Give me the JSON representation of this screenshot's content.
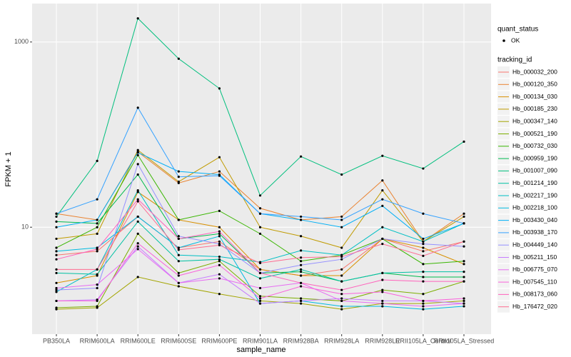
{
  "chart_data": {
    "type": "line",
    "x_label": "sample_name",
    "y_label": "FPKM + 1",
    "categories": [
      "PB350LA",
      "RRIM600LA",
      "RRIM600LE",
      "RRIM600SE",
      "RRIM600PE",
      "RRIM901LA",
      "RRIM928BA",
      "RRIM928LA",
      "RRIM928LE",
      "RRII105LA_Control",
      "RRII105LA_Stressed"
    ],
    "y_log_scale": true,
    "ylim": [
      0.7,
      2600
    ],
    "yticks": [
      10,
      1000
    ],
    "grid": true,
    "legend_position": "right",
    "shape_legend_title": "quant_status",
    "shape_levels": [
      "OK"
    ],
    "point_color": "#000000",
    "color_legend_title": "tracking_id",
    "series": [
      {
        "name": "Hb_000032_200",
        "color": "#F8766D",
        "values": [
          5,
          5.5,
          13,
          6,
          7,
          3.5,
          3,
          3.5,
          7.5,
          5.5,
          7
        ]
      },
      {
        "name": "Hb_000120_350",
        "color": "#EA8331",
        "values": [
          14,
          12,
          65,
          30,
          40,
          16,
          12,
          13,
          32,
          7,
          14
        ]
      },
      {
        "name": "Hb_000134_030",
        "color": "#D89000",
        "values": [
          2.5,
          3,
          24,
          12,
          10,
          3.5,
          3,
          3,
          7.5,
          6,
          4
        ]
      },
      {
        "name": "Hb_000185_230",
        "color": "#C09B00",
        "values": [
          7.5,
          8.5,
          68,
          31,
          57,
          10,
          8,
          6,
          25,
          7,
          13
        ]
      },
      {
        "name": "Hb_000347_140",
        "color": "#A3A500",
        "values": [
          1.3,
          1.35,
          2.9,
          2.3,
          1.9,
          1.6,
          1.5,
          1.3,
          1.5,
          1.5,
          1.6
        ]
      },
      {
        "name": "Hb_000521_190",
        "color": "#7CAE00",
        "values": [
          1.35,
          1.4,
          8.5,
          3.2,
          4.3,
          1.8,
          1.7,
          1.6,
          2.1,
          1.9,
          2.6
        ]
      },
      {
        "name": "Hb_000732_030",
        "color": "#39B600",
        "values": [
          6,
          10,
          60,
          12,
          15,
          8.5,
          4.3,
          5,
          7.5,
          4,
          4.3
        ]
      },
      {
        "name": "Hb_000959_190",
        "color": "#00BB4E",
        "values": [
          11.5,
          11,
          37,
          7.5,
          8.5,
          3.2,
          3.3,
          2.6,
          3.2,
          2.9,
          2.9
        ]
      },
      {
        "name": "Hb_001007_090",
        "color": "#00BF7D",
        "values": [
          13,
          52,
          1800,
          660,
          315,
          22,
          58,
          37,
          59,
          43,
          84
        ]
      },
      {
        "name": "Hb_001214_190",
        "color": "#00C1A3",
        "values": [
          3.2,
          3.1,
          11.5,
          4.3,
          4.5,
          2.8,
          3.5,
          2.6,
          3.2,
          3.3,
          3.3
        ]
      },
      {
        "name": "Hb_002217_190",
        "color": "#00BFC4",
        "values": [
          2,
          3.5,
          25,
          5,
          4.8,
          4.2,
          5.6,
          5,
          10,
          7,
          11
        ]
      },
      {
        "name": "Hb_002218_100",
        "color": "#00BAE0",
        "values": [
          5.5,
          6,
          13,
          6,
          8,
          1.5,
          1.6,
          1.4,
          1.4,
          1.3,
          1.4
        ]
      },
      {
        "name": "Hb_003430_040",
        "color": "#00B0F6",
        "values": [
          10,
          12,
          64,
          40,
          37,
          14,
          12,
          10,
          17,
          7.5,
          11
        ]
      },
      {
        "name": "Hb_003938_170",
        "color": "#35A2FF",
        "values": [
          14,
          20,
          195,
          35,
          36,
          14,
          13,
          12,
          20,
          14,
          11
        ]
      },
      {
        "name": "Hb_004449_140",
        "color": "#9590FF",
        "values": [
          2.1,
          2.2,
          48,
          8,
          6.6,
          3.2,
          3.9,
          4.5,
          7.5,
          6.6,
          6.2
        ]
      },
      {
        "name": "Hb_005211_150",
        "color": "#C77CFF",
        "values": [
          1.6,
          1.65,
          6.2,
          2.5,
          3.1,
          1.5,
          1.6,
          1.7,
          1.6,
          1.6,
          1.5
        ]
      },
      {
        "name": "Hb_006775_070",
        "color": "#E76BF3",
        "values": [
          2.2,
          2.4,
          5.8,
          2.5,
          2.8,
          2.2,
          2.5,
          1.6,
          1.5,
          1.4,
          1.5
        ]
      },
      {
        "name": "Hb_007545_110",
        "color": "#FA62DB",
        "values": [
          1.6,
          1.6,
          6.7,
          3,
          3.9,
          1.7,
          2.3,
          1.9,
          2,
          1.6,
          1.7
        ]
      },
      {
        "name": "Hb_008173_060",
        "color": "#FF62BC",
        "values": [
          4.5,
          5.8,
          20,
          7.5,
          9,
          3.2,
          2.5,
          2.1,
          2.7,
          2.6,
          2.6
        ]
      },
      {
        "name": "Hb_176472_020",
        "color": "#FF6C91",
        "values": [
          3.5,
          3.5,
          19,
          5.7,
          6.4,
          4.1,
          4.7,
          4.8,
          6.6,
          4.9,
          7
        ]
      }
    ]
  }
}
